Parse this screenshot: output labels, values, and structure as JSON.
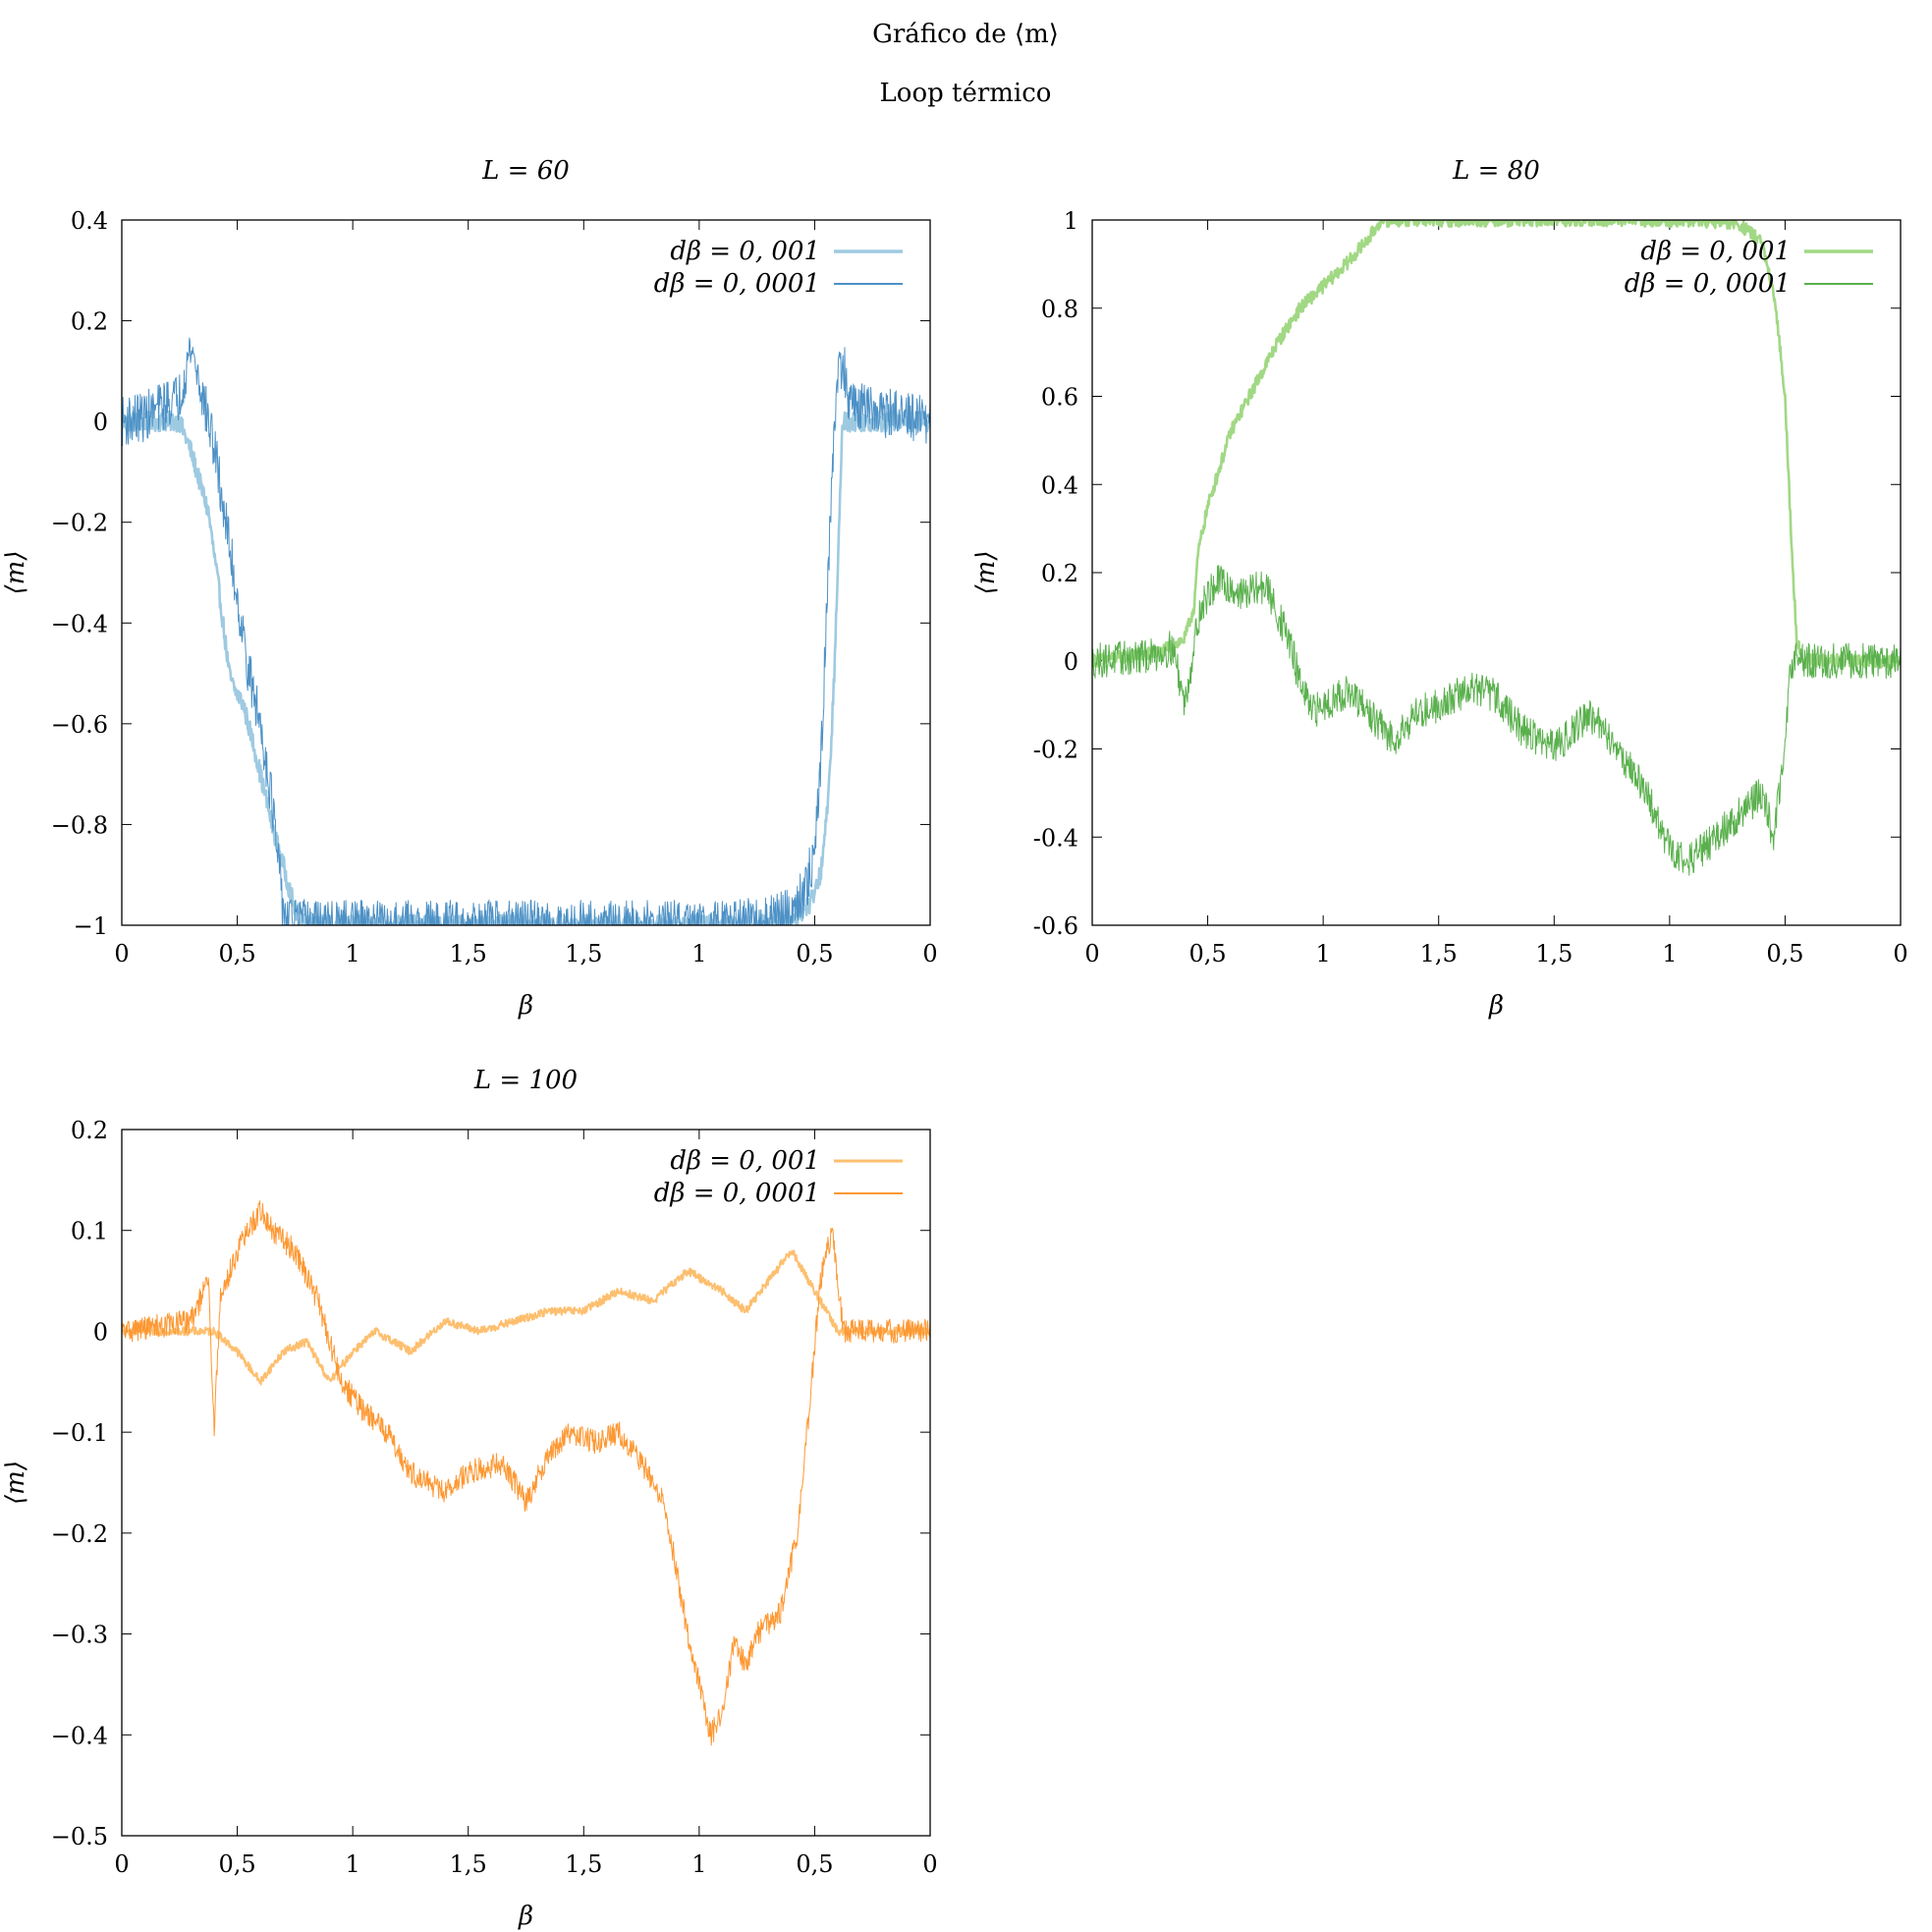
{
  "figure": {
    "title": "Gráfico de ⟨m⟩",
    "subtitle": "Loop térmico"
  },
  "chart_data": [
    {
      "type": "line",
      "title": "L = 60",
      "xlabel": "β",
      "ylabel": "⟨m⟩",
      "x_range": [
        0,
        7
      ],
      "xticks": [
        "0",
        "0,5",
        "1",
        "1,5",
        "1,5",
        "1",
        "0,5",
        "0"
      ],
      "ylim": [
        -1,
        0.4
      ],
      "yticks": [
        "0.4",
        "0.2",
        "0",
        "−0.2",
        "−0.4",
        "−0.6",
        "−0.8",
        "−1"
      ],
      "yticks_values": [
        0.4,
        0.2,
        0,
        -0.2,
        -0.4,
        -0.6,
        -0.8,
        -1
      ],
      "legend": "top-right",
      "series": [
        {
          "name": "dβ = 0, 001",
          "color": "#9ecae1",
          "width": 2.6,
          "noise": 0.02,
          "points": [
            [
              0,
              0.0
            ],
            [
              0.5,
              0.0
            ],
            [
              0.6,
              -0.06
            ],
            [
              0.75,
              -0.18
            ],
            [
              0.85,
              -0.35
            ],
            [
              0.93,
              -0.5
            ],
            [
              0.97,
              -0.53
            ],
            [
              1.05,
              -0.56
            ],
            [
              1.15,
              -0.65
            ],
            [
              1.3,
              -0.8
            ],
            [
              1.42,
              -0.9
            ],
            [
              1.5,
              -0.97
            ],
            [
              1.58,
              -0.99
            ],
            [
              1.8,
              -1.0
            ],
            [
              3.5,
              -1.0
            ],
            [
              5.5,
              -1.0
            ],
            [
              5.8,
              -0.99
            ],
            [
              5.95,
              -0.96
            ],
            [
              6.05,
              -0.9
            ],
            [
              6.12,
              -0.75
            ],
            [
              6.17,
              -0.5
            ],
            [
              6.2,
              -0.3
            ],
            [
              6.24,
              0.0
            ],
            [
              7,
              0.0
            ]
          ]
        },
        {
          "name": "dβ = 0, 0001",
          "color": "#4d91c6",
          "width": 1.0,
          "noise": 0.05,
          "points": [
            [
              0,
              0.0
            ],
            [
              0.2,
              0.01
            ],
            [
              0.35,
              0.03
            ],
            [
              0.5,
              0.05
            ],
            [
              0.6,
              0.15
            ],
            [
              0.7,
              0.05
            ],
            [
              0.8,
              -0.05
            ],
            [
              0.9,
              -0.2
            ],
            [
              1.0,
              -0.35
            ],
            [
              1.1,
              -0.5
            ],
            [
              1.2,
              -0.6
            ],
            [
              1.3,
              -0.75
            ],
            [
              1.35,
              -0.87
            ],
            [
              1.4,
              -0.97
            ],
            [
              1.45,
              -0.99
            ],
            [
              1.6,
              -1.0
            ],
            [
              3.5,
              -1.0
            ],
            [
              5.3,
              -1.0
            ],
            [
              5.6,
              -0.99
            ],
            [
              5.8,
              -0.97
            ],
            [
              5.92,
              -0.93
            ],
            [
              6.0,
              -0.85
            ],
            [
              6.05,
              -0.7
            ],
            [
              6.1,
              -0.4
            ],
            [
              6.15,
              -0.1
            ],
            [
              6.2,
              0.1
            ],
            [
              6.25,
              0.12
            ],
            [
              6.3,
              0.03
            ],
            [
              7,
              0.0
            ]
          ]
        }
      ]
    },
    {
      "type": "line",
      "title": "L = 80",
      "xlabel": "β",
      "ylabel": "⟨m⟩",
      "x_range": [
        0,
        7
      ],
      "xticks": [
        "0",
        "0,5",
        "1",
        "1,5",
        "1,5",
        "1",
        "0,5",
        "0"
      ],
      "ylim": [
        -0.6,
        1
      ],
      "yticks": [
        "1",
        "0.8",
        "0.6",
        "0.4",
        "0.2",
        "0",
        "-0.2",
        "-0.4",
        "-0.6"
      ],
      "yticks_values": [
        1,
        0.8,
        0.6,
        0.4,
        0.2,
        0,
        -0.2,
        -0.4,
        -0.6
      ],
      "legend": "top-right",
      "series": [
        {
          "name": "dβ = 0, 001",
          "color": "#a1d884",
          "width": 2.6,
          "noise": 0.015,
          "points": [
            [
              0,
              0.0
            ],
            [
              0.6,
              0.02
            ],
            [
              0.8,
              0.05
            ],
            [
              0.88,
              0.12
            ],
            [
              0.92,
              0.25
            ],
            [
              1.0,
              0.35
            ],
            [
              1.2,
              0.52
            ],
            [
              1.4,
              0.62
            ],
            [
              1.6,
              0.72
            ],
            [
              1.8,
              0.8
            ],
            [
              2.0,
              0.85
            ],
            [
              2.2,
              0.9
            ],
            [
              2.4,
              0.96
            ],
            [
              2.5,
              1.0
            ],
            [
              3.5,
              1.0
            ],
            [
              5.2,
              1.0
            ],
            [
              5.6,
              0.99
            ],
            [
              5.8,
              0.95
            ],
            [
              5.92,
              0.8
            ],
            [
              6.0,
              0.6
            ],
            [
              6.05,
              0.3
            ],
            [
              6.1,
              0.05
            ],
            [
              6.15,
              0.0
            ],
            [
              7,
              0.0
            ]
          ]
        },
        {
          "name": "dβ = 0, 0001",
          "color": "#5ab04d",
          "width": 1.0,
          "noise": 0.04,
          "points": [
            [
              0,
              0.0
            ],
            [
              0.5,
              0.01
            ],
            [
              0.7,
              0.03
            ],
            [
              0.8,
              -0.1
            ],
            [
              0.85,
              -0.02
            ],
            [
              0.92,
              0.1
            ],
            [
              1.0,
              0.15
            ],
            [
              1.1,
              0.18
            ],
            [
              1.3,
              0.15
            ],
            [
              1.5,
              0.17
            ],
            [
              1.7,
              0.05
            ],
            [
              1.8,
              -0.05
            ],
            [
              1.9,
              -0.12
            ],
            [
              2.0,
              -0.1
            ],
            [
              2.2,
              -0.07
            ],
            [
              2.4,
              -0.12
            ],
            [
              2.6,
              -0.18
            ],
            [
              2.8,
              -0.12
            ],
            [
              3.0,
              -0.1
            ],
            [
              3.3,
              -0.06
            ],
            [
              3.5,
              -0.08
            ],
            [
              3.7,
              -0.15
            ],
            [
              4.0,
              -0.2
            ],
            [
              4.3,
              -0.12
            ],
            [
              4.5,
              -0.18
            ],
            [
              4.8,
              -0.3
            ],
            [
              5.0,
              -0.43
            ],
            [
              5.2,
              -0.45
            ],
            [
              5.4,
              -0.4
            ],
            [
              5.6,
              -0.35
            ],
            [
              5.8,
              -0.3
            ],
            [
              5.9,
              -0.4
            ],
            [
              6.0,
              -0.2
            ],
            [
              6.05,
              0.0
            ],
            [
              7,
              0.0
            ]
          ]
        }
      ]
    },
    {
      "type": "line",
      "title": "L = 100",
      "xlabel": "β",
      "ylabel": "⟨m⟩",
      "x_range": [
        0,
        7
      ],
      "xticks": [
        "0",
        "0,5",
        "1",
        "1,5",
        "1,5",
        "1",
        "0,5",
        "0"
      ],
      "ylim": [
        -0.5,
        0.2
      ],
      "yticks": [
        "0.2",
        "0.1",
        "0",
        "−0.1",
        "−0.2",
        "−0.3",
        "−0.4",
        "−0.5"
      ],
      "yticks_values": [
        0.2,
        0.1,
        0,
        -0.1,
        -0.2,
        -0.3,
        -0.4,
        -0.5
      ],
      "legend": "top-right",
      "series": [
        {
          "name": "dβ = 0, 001",
          "color": "#fdbf6f",
          "width": 2.0,
          "noise": 0.004,
          "points": [
            [
              0,
              0.0
            ],
            [
              0.8,
              0.0
            ],
            [
              1.0,
              -0.02
            ],
            [
              1.2,
              -0.05
            ],
            [
              1.4,
              -0.02
            ],
            [
              1.6,
              -0.01
            ],
            [
              1.8,
              -0.05
            ],
            [
              2.0,
              -0.02
            ],
            [
              2.2,
              0.0
            ],
            [
              2.5,
              -0.02
            ],
            [
              2.8,
              0.01
            ],
            [
              3.1,
              0.0
            ],
            [
              3.4,
              0.01
            ],
            [
              3.7,
              0.02
            ],
            [
              4.0,
              0.02
            ],
            [
              4.3,
              0.04
            ],
            [
              4.6,
              0.03
            ],
            [
              4.9,
              0.06
            ],
            [
              5.2,
              0.04
            ],
            [
              5.4,
              0.02
            ],
            [
              5.6,
              0.05
            ],
            [
              5.8,
              0.08
            ],
            [
              6.0,
              0.04
            ],
            [
              6.2,
              0.0
            ],
            [
              7,
              0.0
            ]
          ]
        },
        {
          "name": "dβ = 0, 0001",
          "color": "#fd9833",
          "width": 1.0,
          "noise": 0.012,
          "points": [
            [
              0,
              0.0
            ],
            [
              0.6,
              0.01
            ],
            [
              0.75,
              0.05
            ],
            [
              0.8,
              -0.1
            ],
            [
              0.85,
              0.03
            ],
            [
              1.0,
              0.08
            ],
            [
              1.2,
              0.12
            ],
            [
              1.3,
              0.1
            ],
            [
              1.5,
              0.08
            ],
            [
              1.7,
              0.03
            ],
            [
              1.9,
              -0.05
            ],
            [
              2.1,
              -0.08
            ],
            [
              2.3,
              -0.1
            ],
            [
              2.5,
              -0.14
            ],
            [
              2.8,
              -0.16
            ],
            [
              3.0,
              -0.14
            ],
            [
              3.3,
              -0.13
            ],
            [
              3.5,
              -0.17
            ],
            [
              3.7,
              -0.12
            ],
            [
              3.9,
              -0.1
            ],
            [
              4.1,
              -0.11
            ],
            [
              4.3,
              -0.1
            ],
            [
              4.5,
              -0.13
            ],
            [
              4.7,
              -0.17
            ],
            [
              4.9,
              -0.3
            ],
            [
              5.0,
              -0.35
            ],
            [
              5.1,
              -0.4
            ],
            [
              5.2,
              -0.38
            ],
            [
              5.3,
              -0.31
            ],
            [
              5.4,
              -0.33
            ],
            [
              5.5,
              -0.3
            ],
            [
              5.7,
              -0.28
            ],
            [
              5.85,
              -0.2
            ],
            [
              5.95,
              -0.08
            ],
            [
              6.05,
              0.05
            ],
            [
              6.15,
              0.1
            ],
            [
              6.25,
              0.0
            ],
            [
              7,
              0.0
            ]
          ]
        }
      ]
    }
  ]
}
